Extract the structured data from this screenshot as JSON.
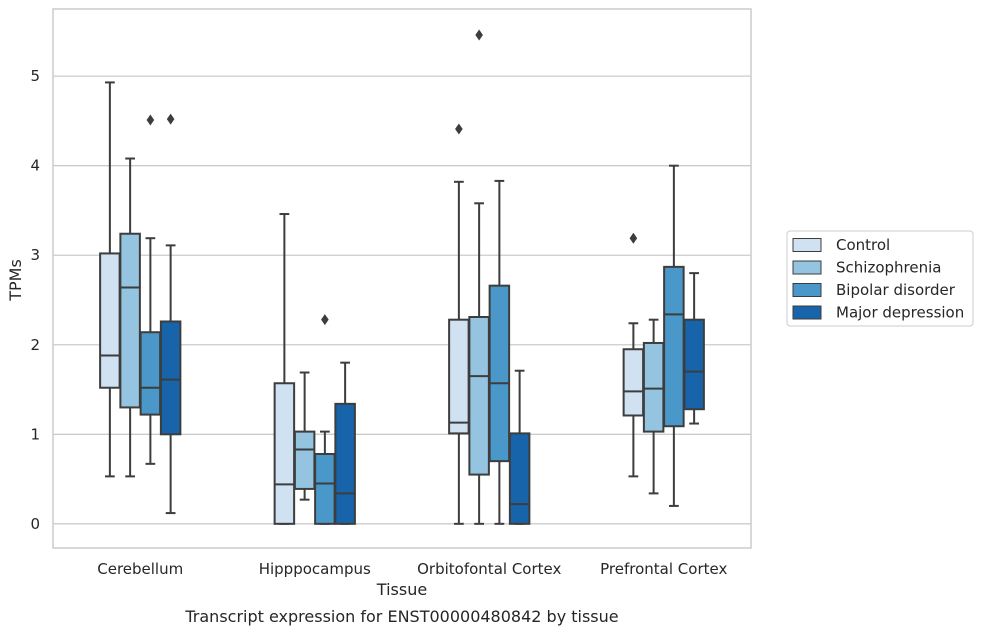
{
  "caption": "Transcript expression for ENST00000480842 by tissue",
  "chart_data": {
    "type": "box",
    "xlabel": "Tissue",
    "ylabel": "TPMs",
    "ylim": [
      -0.27,
      5.75
    ],
    "yticks": [
      0,
      1,
      2,
      3,
      4,
      5
    ],
    "grid": "horizontal",
    "legend_placement": "right",
    "categories": [
      "Cerebellum",
      "Hipppocampus",
      "Orbitofontal Cortex",
      "Prefrontal Cortex"
    ],
    "series": [
      {
        "name": "Control",
        "color": "#d0e1f2",
        "boxes": [
          {
            "whisker_low": 0.53,
            "q1": 1.52,
            "median": 1.88,
            "q3": 3.02,
            "whisker_high": 4.93,
            "outliers": []
          },
          {
            "whisker_low": 0.0,
            "q1": 0.0,
            "median": 0.44,
            "q3": 1.57,
            "whisker_high": 3.46,
            "outliers": []
          },
          {
            "whisker_low": 0.0,
            "q1": 1.01,
            "median": 1.13,
            "q3": 2.28,
            "whisker_high": 3.82,
            "outliers": [
              4.41
            ]
          },
          {
            "whisker_low": 0.53,
            "q1": 1.21,
            "median": 1.48,
            "q3": 1.95,
            "whisker_high": 2.24,
            "outliers": [
              3.19
            ]
          }
        ]
      },
      {
        "name": "Schizophrenia",
        "color": "#94c4df",
        "boxes": [
          {
            "whisker_low": 0.53,
            "q1": 1.3,
            "median": 2.64,
            "q3": 3.24,
            "whisker_high": 4.08,
            "outliers": []
          },
          {
            "whisker_low": 0.27,
            "q1": 0.39,
            "median": 0.83,
            "q3": 1.03,
            "whisker_high": 1.69,
            "outliers": []
          },
          {
            "whisker_low": 0.0,
            "q1": 0.55,
            "median": 1.65,
            "q3": 2.31,
            "whisker_high": 3.58,
            "outliers": [
              5.46
            ]
          },
          {
            "whisker_low": 0.34,
            "q1": 1.03,
            "median": 1.51,
            "q3": 2.02,
            "whisker_high": 2.28,
            "outliers": []
          }
        ]
      },
      {
        "name": "Bipolar disorder",
        "color": "#4a98c9",
        "boxes": [
          {
            "whisker_low": 0.67,
            "q1": 1.22,
            "median": 1.52,
            "q3": 2.14,
            "whisker_high": 3.19,
            "outliers": [
              4.51
            ]
          },
          {
            "whisker_low": 0.0,
            "q1": 0.0,
            "median": 0.45,
            "q3": 0.78,
            "whisker_high": 1.03,
            "outliers": [
              2.28
            ]
          },
          {
            "whisker_low": 0.0,
            "q1": 0.7,
            "median": 1.57,
            "q3": 2.66,
            "whisker_high": 3.83,
            "outliers": []
          },
          {
            "whisker_low": 0.2,
            "q1": 1.09,
            "median": 2.34,
            "q3": 2.87,
            "whisker_high": 4.0,
            "outliers": []
          }
        ]
      },
      {
        "name": "Major depression",
        "color": "#1764ab",
        "boxes": [
          {
            "whisker_low": 0.12,
            "q1": 1.0,
            "median": 1.61,
            "q3": 2.26,
            "whisker_high": 3.11,
            "outliers": [
              4.52
            ]
          },
          {
            "whisker_low": 0.0,
            "q1": 0.0,
            "median": 0.34,
            "q3": 1.34,
            "whisker_high": 1.8,
            "outliers": []
          },
          {
            "whisker_low": 0.0,
            "q1": 0.0,
            "median": 0.22,
            "q3": 1.01,
            "whisker_high": 1.71,
            "outliers": []
          },
          {
            "whisker_low": 1.12,
            "q1": 1.28,
            "median": 1.7,
            "q3": 2.28,
            "whisker_high": 2.8,
            "outliers": []
          }
        ]
      }
    ]
  }
}
